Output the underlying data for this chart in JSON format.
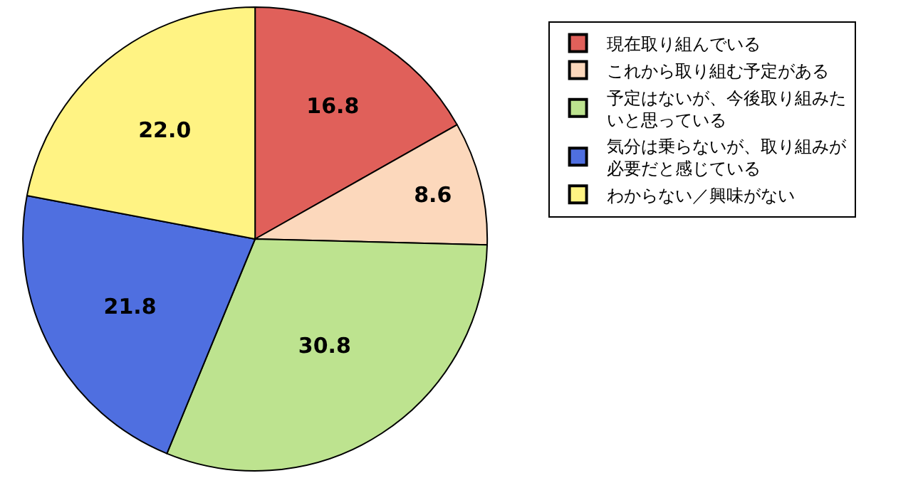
{
  "chart_data": {
    "type": "pie",
    "categories": [
      "現在取り組んでいる",
      "これから取り組む予定がある",
      "予定はないが、今後取り組みたいと思っている",
      "気分は乗らないが、取り組みが必要だと感じている",
      "わからない／興味がない"
    ],
    "values": [
      16.8,
      8.6,
      30.8,
      21.8,
      22.0
    ],
    "colors": [
      "#e0605a",
      "#fcd8bc",
      "#bde38f",
      "#4f6fe0",
      "#fff383"
    ],
    "value_labels": [
      "16.8",
      "8.6",
      "30.8",
      "21.8",
      "22.0"
    ],
    "legend": "right"
  }
}
